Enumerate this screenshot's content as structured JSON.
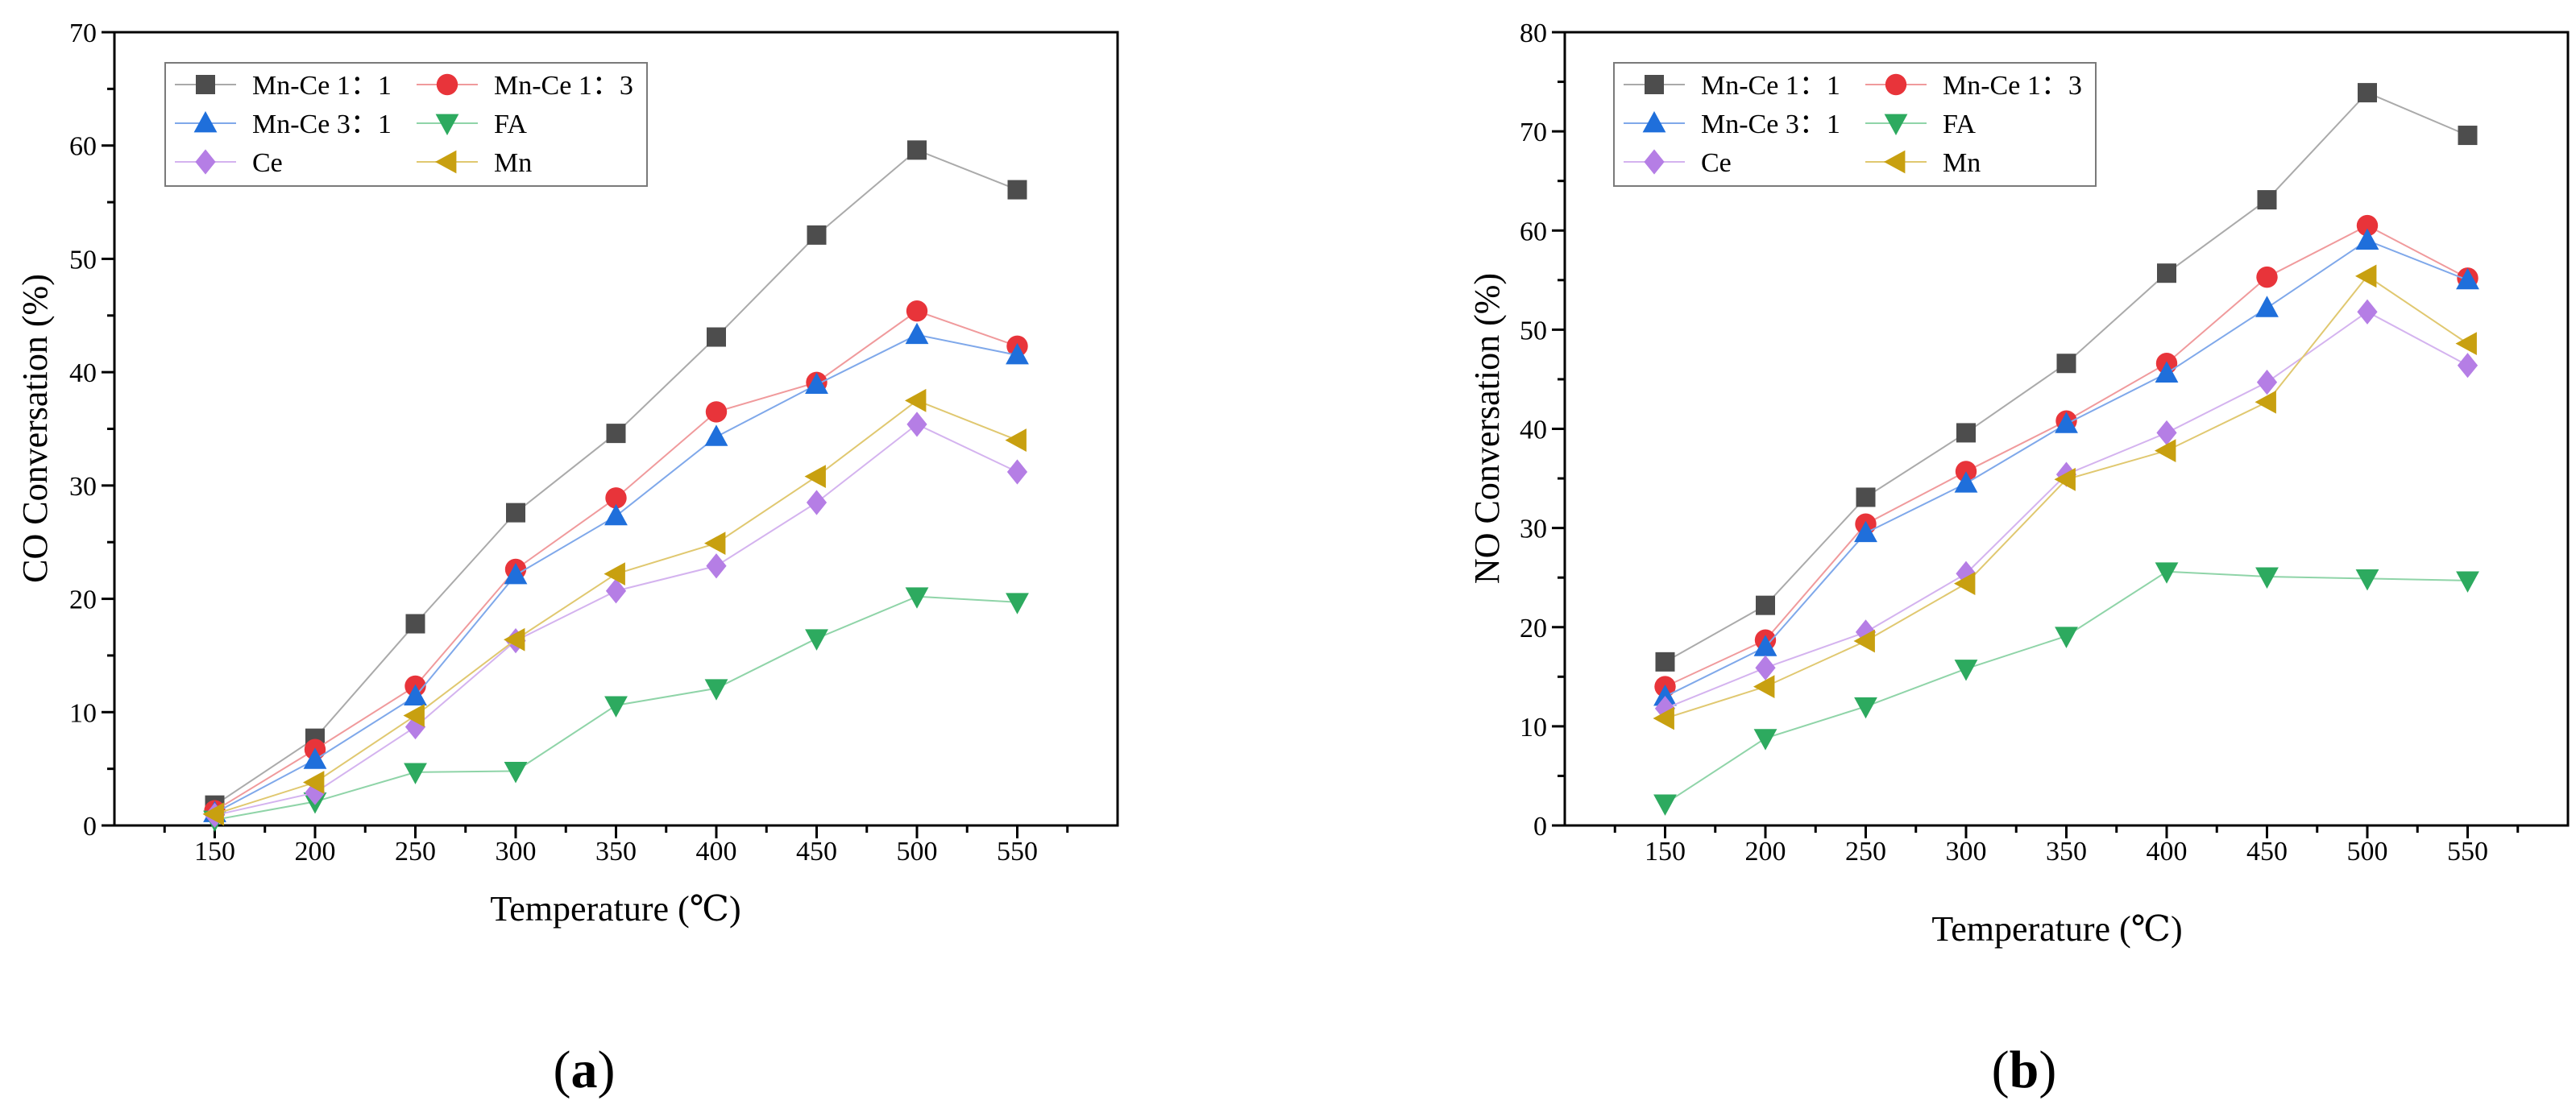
{
  "panels": [
    {
      "label_open": "(",
      "label_letter": "a",
      "label_close": ")"
    },
    {
      "label_open": "(",
      "label_letter": "b",
      "label_close": ")"
    }
  ],
  "chart_data": [
    {
      "type": "line",
      "title": "",
      "xlabel": "Temperature (℃)",
      "ylabel": "CO Conversation (%)",
      "x": [
        150,
        200,
        250,
        300,
        350,
        400,
        450,
        500,
        550
      ],
      "xlim": [
        100,
        600
      ],
      "ylim": [
        0,
        70
      ],
      "yticks": [
        0,
        10,
        20,
        30,
        40,
        50,
        60,
        70
      ],
      "grid": false,
      "legend_position": "top-left",
      "series": [
        {
          "name": "Mn-Ce 1：1",
          "marker": "square",
          "color": "#4d4d4d",
          "line_color": "#aaaaaa",
          "values": [
            1.8,
            7.7,
            17.8,
            27.6,
            34.6,
            43.1,
            52.1,
            59.6,
            56.1
          ]
        },
        {
          "name": "Mn-Ce 1：3",
          "marker": "circle",
          "color": "#e8343a",
          "line_color": "#f09a9c",
          "values": [
            1.3,
            6.7,
            12.3,
            22.6,
            28.9,
            36.5,
            39.1,
            45.4,
            42.3
          ]
        },
        {
          "name": "Mn-Ce 3：1",
          "marker": "triangle-up",
          "color": "#1f6fdb",
          "line_color": "#7fa8ea",
          "values": [
            1.1,
            5.8,
            11.4,
            22.1,
            27.3,
            34.3,
            38.9,
            43.3,
            41.5
          ]
        },
        {
          "name": "FA",
          "marker": "triangle-down",
          "color": "#2daa5f",
          "line_color": "#8fd4a8",
          "values": [
            0.5,
            2.1,
            4.7,
            4.8,
            10.6,
            12.1,
            16.5,
            20.2,
            19.7
          ]
        },
        {
          "name": "Ce",
          "marker": "diamond",
          "color": "#b57ee5",
          "line_color": "#d4b3ef",
          "values": [
            0.9,
            2.9,
            8.7,
            16.3,
            20.7,
            22.9,
            28.5,
            35.4,
            31.2
          ]
        },
        {
          "name": "Mn",
          "marker": "triangle-left",
          "color": "#c8a010",
          "line_color": "#e0c870",
          "values": [
            1.0,
            3.8,
            9.7,
            16.4,
            22.2,
            24.9,
            30.8,
            37.5,
            34.0
          ]
        }
      ]
    },
    {
      "type": "line",
      "title": "",
      "xlabel": "Temperature (℃)",
      "ylabel": "NO Conversation (%)",
      "x": [
        150,
        200,
        250,
        300,
        350,
        400,
        450,
        500,
        550
      ],
      "xlim": [
        100,
        600
      ],
      "ylim": [
        0,
        80
      ],
      "yticks": [
        0,
        10,
        20,
        30,
        40,
        50,
        60,
        70,
        80
      ],
      "grid": false,
      "legend_position": "top-left",
      "series": [
        {
          "name": "Mn-Ce 1：1",
          "marker": "square",
          "color": "#4d4d4d",
          "line_color": "#aaaaaa",
          "values": [
            16.5,
            22.2,
            33.1,
            39.6,
            46.6,
            55.7,
            63.1,
            73.9,
            69.6
          ]
        },
        {
          "name": "Mn-Ce 1：3",
          "marker": "circle",
          "color": "#e8343a",
          "line_color": "#f09a9c",
          "values": [
            14.0,
            18.7,
            30.4,
            35.7,
            40.8,
            46.6,
            55.3,
            60.5,
            55.2
          ]
        },
        {
          "name": "Mn-Ce 3：1",
          "marker": "triangle-up",
          "color": "#1f6fdb",
          "line_color": "#7fa8ea",
          "values": [
            13.0,
            18.0,
            29.5,
            34.5,
            40.5,
            45.6,
            52.2,
            59.0,
            55.0
          ]
        },
        {
          "name": "FA",
          "marker": "triangle-down",
          "color": "#2daa5f",
          "line_color": "#8fd4a8",
          "values": [
            2.2,
            8.8,
            12.0,
            15.8,
            19.1,
            25.6,
            25.1,
            24.9,
            24.7
          ]
        },
        {
          "name": "Ce",
          "marker": "diamond",
          "color": "#b57ee5",
          "line_color": "#d4b3ef",
          "values": [
            11.8,
            15.9,
            19.5,
            25.4,
            35.4,
            39.6,
            44.7,
            51.8,
            46.4
          ]
        },
        {
          "name": "Mn",
          "marker": "triangle-left",
          "color": "#c8a010",
          "line_color": "#e0c870",
          "values": [
            10.8,
            14.0,
            18.6,
            24.4,
            34.9,
            37.8,
            42.7,
            55.4,
            48.6
          ]
        }
      ]
    }
  ]
}
